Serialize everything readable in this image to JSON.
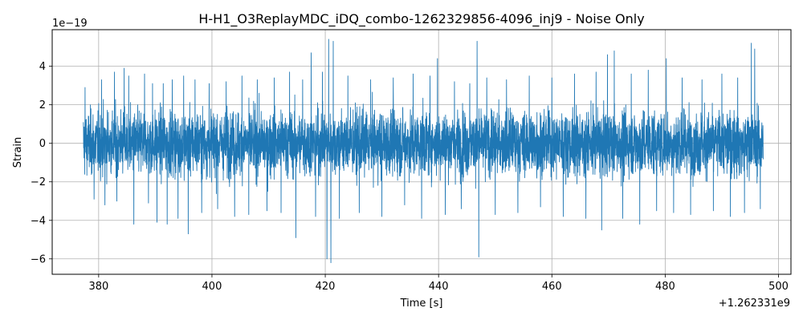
{
  "chart_data": {
    "type": "line",
    "title": "H-H1_O3ReplayMDC_iDQ_combo-1262329856-4096_inj9 - Noise Only",
    "xlabel": "Time [s]",
    "ylabel": "Strain",
    "x_offset_label": "+1.262331e9",
    "y_scale_label": "1e−19",
    "xlim": [
      371.8,
      502.2
    ],
    "ylim": [
      -6.8,
      5.9
    ],
    "xticks": [
      380,
      400,
      420,
      440,
      460,
      480,
      500
    ],
    "xtick_labels": [
      "380",
      "400",
      "420",
      "440",
      "460",
      "480",
      "500"
    ],
    "yticks": [
      -6,
      -4,
      -2,
      0,
      2,
      4
    ],
    "ytick_labels": [
      "−6",
      "−4",
      "−2",
      "0",
      "2",
      "4"
    ],
    "grid": true,
    "line_color": "#1f77b4",
    "series": [
      {
        "x_range": [
          377.3,
          497.3
        ],
        "typical_amplitude": 1.5,
        "spikes": [
          {
            "x": 377.6,
            "y": 2.9
          },
          {
            "x": 379.2,
            "y": -2.9
          },
          {
            "x": 380.5,
            "y": 3.3
          },
          {
            "x": 381.1,
            "y": -3.2
          },
          {
            "x": 382.8,
            "y": 3.7
          },
          {
            "x": 383.2,
            "y": -3.0
          },
          {
            "x": 384.5,
            "y": 3.9
          },
          {
            "x": 385.3,
            "y": 3.5
          },
          {
            "x": 386.2,
            "y": -4.2
          },
          {
            "x": 388.1,
            "y": 3.6
          },
          {
            "x": 388.8,
            "y": -3.1
          },
          {
            "x": 389.5,
            "y": 3.1
          },
          {
            "x": 390.3,
            "y": -4.1
          },
          {
            "x": 391.4,
            "y": 3.1
          },
          {
            "x": 392.1,
            "y": -4.2
          },
          {
            "x": 393.0,
            "y": 3.3
          },
          {
            "x": 394.0,
            "y": -3.9
          },
          {
            "x": 395.0,
            "y": 3.5
          },
          {
            "x": 395.8,
            "y": -4.7
          },
          {
            "x": 397.0,
            "y": 3.3
          },
          {
            "x": 398.2,
            "y": -3.6
          },
          {
            "x": 399.5,
            "y": 3.1
          },
          {
            "x": 401.0,
            "y": -3.4
          },
          {
            "x": 402.5,
            "y": 3.2
          },
          {
            "x": 404.0,
            "y": -3.8
          },
          {
            "x": 405.3,
            "y": 3.5
          },
          {
            "x": 406.5,
            "y": -3.7
          },
          {
            "x": 408.0,
            "y": 3.3
          },
          {
            "x": 409.7,
            "y": -3.5
          },
          {
            "x": 411.0,
            "y": 3.4
          },
          {
            "x": 412.2,
            "y": -3.6
          },
          {
            "x": 413.7,
            "y": 3.7
          },
          {
            "x": 414.8,
            "y": -4.9
          },
          {
            "x": 416.0,
            "y": 3.3
          },
          {
            "x": 417.5,
            "y": 4.7
          },
          {
            "x": 418.3,
            "y": -3.8
          },
          {
            "x": 419.5,
            "y": 3.7
          },
          {
            "x": 420.3,
            "y": -6.0
          },
          {
            "x": 420.6,
            "y": 5.4
          },
          {
            "x": 421.0,
            "y": -6.2
          },
          {
            "x": 421.4,
            "y": 5.3
          },
          {
            "x": 422.5,
            "y": -3.9
          },
          {
            "x": 424.0,
            "y": 3.5
          },
          {
            "x": 426.0,
            "y": -3.6
          },
          {
            "x": 428.0,
            "y": 3.3
          },
          {
            "x": 430.0,
            "y": -3.8
          },
          {
            "x": 432.0,
            "y": 3.4
          },
          {
            "x": 434.0,
            "y": -3.2
          },
          {
            "x": 435.5,
            "y": 3.6
          },
          {
            "x": 437.0,
            "y": -3.9
          },
          {
            "x": 438.5,
            "y": 3.5
          },
          {
            "x": 439.8,
            "y": 4.4
          },
          {
            "x": 441.2,
            "y": -3.7
          },
          {
            "x": 442.8,
            "y": 3.2
          },
          {
            "x": 444.0,
            "y": -3.4
          },
          {
            "x": 445.5,
            "y": 3.1
          },
          {
            "x": 446.8,
            "y": 5.3
          },
          {
            "x": 447.1,
            "y": -5.9
          },
          {
            "x": 448.5,
            "y": 3.4
          },
          {
            "x": 450.0,
            "y": -3.7
          },
          {
            "x": 452.0,
            "y": 3.3
          },
          {
            "x": 454.0,
            "y": -3.6
          },
          {
            "x": 456.0,
            "y": 3.5
          },
          {
            "x": 458.0,
            "y": -3.3
          },
          {
            "x": 460.0,
            "y": 3.4
          },
          {
            "x": 462.0,
            "y": -3.8
          },
          {
            "x": 464.0,
            "y": 3.6
          },
          {
            "x": 466.0,
            "y": -3.9
          },
          {
            "x": 467.8,
            "y": 3.7
          },
          {
            "x": 468.8,
            "y": -4.5
          },
          {
            "x": 469.8,
            "y": 4.6
          },
          {
            "x": 471.0,
            "y": 4.8
          },
          {
            "x": 472.5,
            "y": -3.9
          },
          {
            "x": 474.0,
            "y": 3.6
          },
          {
            "x": 475.5,
            "y": -4.2
          },
          {
            "x": 477.0,
            "y": 3.8
          },
          {
            "x": 478.5,
            "y": -3.5
          },
          {
            "x": 480.2,
            "y": 4.4
          },
          {
            "x": 481.5,
            "y": -3.6
          },
          {
            "x": 483.0,
            "y": 3.4
          },
          {
            "x": 484.5,
            "y": -3.7
          },
          {
            "x": 486.5,
            "y": 3.3
          },
          {
            "x": 488.5,
            "y": -3.5
          },
          {
            "x": 490.0,
            "y": 3.6
          },
          {
            "x": 491.5,
            "y": -3.8
          },
          {
            "x": 492.8,
            "y": 3.4
          },
          {
            "x": 494.0,
            "y": -3.6
          },
          {
            "x": 495.2,
            "y": 5.2
          },
          {
            "x": 495.8,
            "y": 4.9
          },
          {
            "x": 496.8,
            "y": -3.4
          }
        ]
      }
    ]
  }
}
